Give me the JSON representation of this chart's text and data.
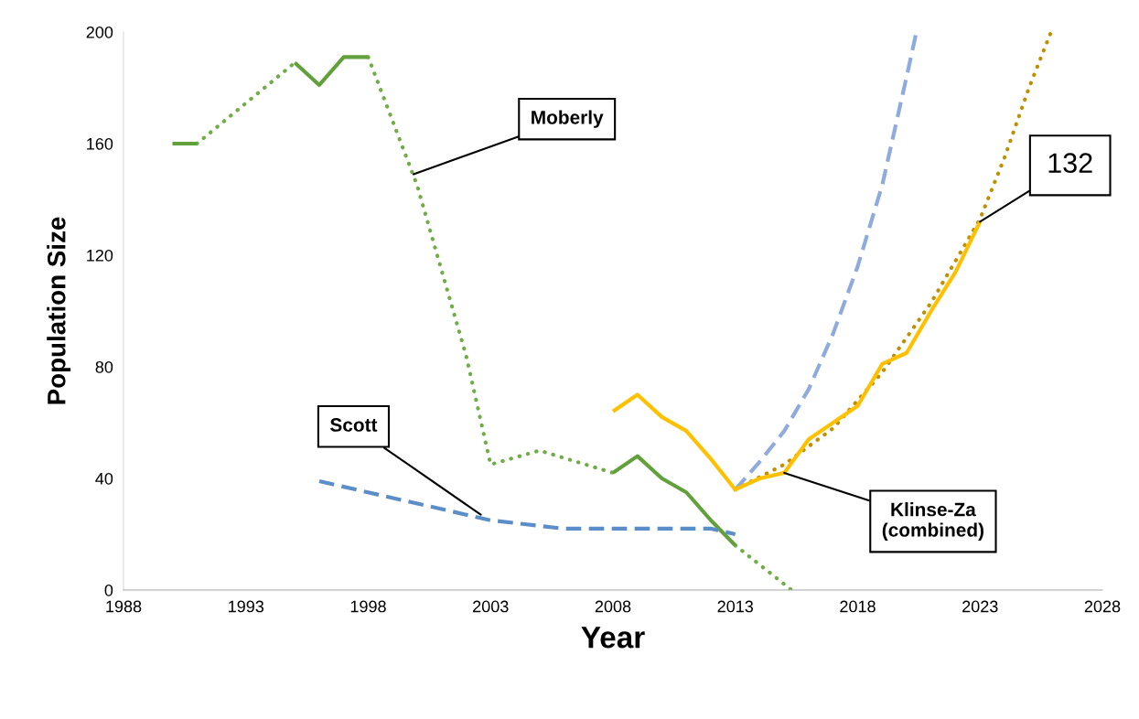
{
  "chart_data": {
    "type": "line",
    "xlabel": "Year",
    "ylabel": "Population Size",
    "xlim": [
      1988,
      2028
    ],
    "xticks": [
      1988,
      1993,
      1998,
      2003,
      2008,
      2013,
      2018,
      2023,
      2028
    ],
    "ylim": [
      0,
      200
    ],
    "yticks": [
      0,
      40,
      80,
      120,
      160,
      200
    ],
    "grid": false,
    "marker": "none",
    "series": [
      {
        "color": "#70ad47",
        "line_style": "dotted",
        "x": [
          1991,
          1995,
          1996.5,
          1998,
          2000,
          2002,
          2003,
          2005,
          2008,
          2010.5,
          2013,
          2015.3
        ],
        "values": [
          160,
          189,
          null,
          191,
          145,
          84,
          45,
          50,
          42,
          null,
          16,
          0
        ]
      },
      {
        "color": "#62a03c",
        "line_style": "solid",
        "x": [
          1990,
          1991,
          1993,
          1995,
          1996,
          1997,
          1998,
          2003,
          2008,
          2009,
          2010,
          2011,
          2012,
          2013
        ],
        "values": [
          160,
          160,
          null,
          189,
          181,
          191,
          191,
          null,
          42,
          48,
          40,
          35,
          25,
          16
        ]
      },
      {
        "color": "#5b8ec9",
        "line_style": "dashed",
        "x": [
          1996,
          1997,
          2003,
          2005,
          2006,
          2012,
          2013
        ],
        "values": [
          39,
          37,
          25,
          23,
          22,
          22,
          20
        ]
      },
      {
        "color": "#8faadc",
        "line_style": "dashed",
        "x": [
          2013,
          2014,
          2015,
          2016,
          2017,
          2018,
          2019,
          2020,
          2020.4
        ],
        "values": [
          36,
          46,
          57,
          72,
          92,
          116,
          145,
          184,
          200
        ]
      },
      {
        "color": "#bf9000",
        "line_style": "dotted",
        "x": [
          2013,
          2015,
          2017,
          2019,
          2021,
          2023,
          2024,
          2025,
          2025.9
        ],
        "values": [
          36,
          45,
          58,
          78,
          103,
          133,
          155,
          180,
          200
        ]
      },
      {
        "color": "#ffc000",
        "line_style": "solid",
        "x": [
          2008,
          2009,
          2010,
          2011,
          2012,
          2013,
          2014,
          2015,
          2016,
          2017,
          2018,
          2019,
          2020,
          2021,
          2022,
          2023
        ],
        "values": [
          64,
          70,
          62,
          57,
          47,
          36,
          40,
          42,
          54,
          60,
          66,
          81,
          85,
          100,
          114,
          132
        ]
      }
    ],
    "annotations": [
      {
        "text": "Moberly",
        "x": 1999.85,
        "y": 149
      },
      {
        "text": "Scott",
        "x": 2002.6,
        "y": 27
      },
      {
        "text": "Klinse-Za\n(combined)",
        "x": 2015,
        "y": 42
      },
      {
        "text": "132",
        "x": 2023,
        "y": 132
      }
    ]
  }
}
